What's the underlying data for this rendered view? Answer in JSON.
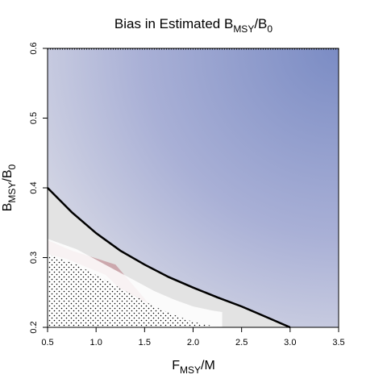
{
  "chart_data": {
    "type": "heatmap",
    "title": {
      "prefix": "Bias in Estimated B",
      "sub1": "MSY",
      "mid": "/B",
      "sub2": "0"
    },
    "xlabel": {
      "prefix": "F",
      "sub": "MSY",
      "suffix": "/M"
    },
    "ylabel": {
      "prefix": "B",
      "sub": "MSY",
      "mid": "/B",
      "sub2": "0"
    },
    "xlim": [
      0.5,
      3.5
    ],
    "ylim": [
      0.2,
      0.6
    ],
    "x_ticks": [
      "0.5",
      "1.0",
      "1.5",
      "2.0",
      "2.5",
      "3.0",
      "3.5"
    ],
    "y_ticks": [
      "0.2",
      "0.3",
      "0.4",
      "0.5",
      "0.6"
    ],
    "colors": {
      "negative_bias": "#7b8cc4",
      "positive_bias": "#a03a48",
      "neutral": "#e6e6e6",
      "curve": "#000000"
    },
    "curve": {
      "x": [
        0.5,
        0.75,
        1.0,
        1.25,
        1.5,
        1.75,
        2.0,
        2.25,
        2.5,
        2.75,
        3.0
      ],
      "y": [
        0.4,
        0.365,
        0.335,
        0.31,
        0.29,
        0.272,
        0.257,
        0.243,
        0.23,
        0.215,
        0.2
      ]
    },
    "stippled_region_boundary": {
      "x": [
        0.5,
        0.6,
        0.8,
        1.0,
        1.2,
        1.4,
        1.6,
        1.8,
        2.0,
        2.2,
        2.3
      ],
      "y": [
        0.305,
        0.3,
        0.29,
        0.275,
        0.26,
        0.245,
        0.23,
        0.218,
        0.208,
        0.202,
        0.2
      ]
    }
  }
}
